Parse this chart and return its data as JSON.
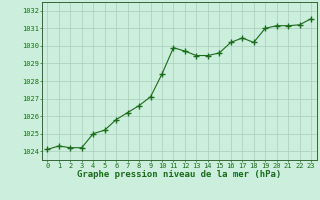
{
  "x": [
    0,
    1,
    2,
    3,
    4,
    5,
    6,
    7,
    8,
    9,
    10,
    11,
    12,
    13,
    14,
    15,
    16,
    17,
    18,
    19,
    20,
    21,
    22,
    23
  ],
  "y": [
    1024.1,
    1024.3,
    1024.2,
    1024.2,
    1025.0,
    1025.2,
    1025.8,
    1026.2,
    1026.6,
    1027.1,
    1028.4,
    1029.9,
    1029.7,
    1029.45,
    1029.45,
    1029.6,
    1030.2,
    1030.45,
    1030.2,
    1031.0,
    1031.15,
    1031.15,
    1031.2,
    1031.55
  ],
  "line_color": "#1a6b1a",
  "marker": "+",
  "marker_size": 4.0,
  "line_width": 0.8,
  "bg_color": "#cceedd",
  "grid_color": "#aaccbb",
  "xlabel": "Graphe pression niveau de la mer (hPa)",
  "xlabel_fontsize": 6.5,
  "xlim": [
    -0.5,
    23.5
  ],
  "ylim": [
    1023.5,
    1032.5
  ],
  "yticks": [
    1024,
    1025,
    1026,
    1027,
    1028,
    1029,
    1030,
    1031,
    1032
  ],
  "xticks": [
    0,
    1,
    2,
    3,
    4,
    5,
    6,
    7,
    8,
    9,
    10,
    11,
    12,
    13,
    14,
    15,
    16,
    17,
    18,
    19,
    20,
    21,
    22,
    23
  ],
  "tick_label_size": 5.0
}
